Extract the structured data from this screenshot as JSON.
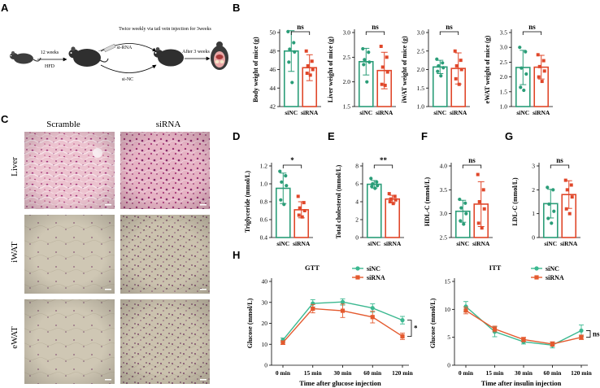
{
  "colors": {
    "green": "#2a9d78",
    "red": "#e0472a",
    "green_line": "#3bb890",
    "red_line": "#e45a2f"
  },
  "panel_a": {
    "label": "A",
    "step1": "12 weeks",
    "diet": "HFD",
    "title": "Twice weekly via tail vein injection for 3weeks",
    "upper": "si-RNA",
    "lower": "si-NC",
    "step2": "After 3 weeks"
  },
  "panel_c": {
    "label": "C",
    "col1": "Scramble",
    "col2": "siRNA",
    "rows": [
      "Liver",
      "iWAT",
      "eWAT"
    ]
  },
  "chart_data": [
    {
      "id": "B1",
      "label": "B",
      "type": "bar",
      "ylabel": "Body weight of mice (g)",
      "ylim": [
        42,
        50
      ],
      "ticks": [
        42,
        44,
        46,
        48,
        50
      ],
      "categories": [
        "siNC",
        "siRNA"
      ],
      "values": [
        48.0,
        46.2
      ],
      "errors": [
        2.2,
        1.4
      ],
      "points": [
        [
          50.1,
          48.9,
          48.2,
          47.9,
          46.8,
          44.6
        ],
        [
          48.0,
          46.9,
          46.4,
          46.0,
          45.6,
          45.4
        ]
      ],
      "sig": "ns"
    },
    {
      "id": "B2",
      "type": "bar",
      "ylabel": "Liver weight of mice (g)",
      "ylim": [
        1.5,
        3.0
      ],
      "ticks": [
        1.5,
        2.0,
        2.5,
        3.0
      ],
      "categories": [
        "siNC",
        "siRNA"
      ],
      "values": [
        2.41,
        2.23
      ],
      "errors": [
        0.27,
        0.37
      ],
      "points": [
        [
          2.67,
          2.6,
          2.45,
          2.4,
          2.35,
          2.0
        ],
        [
          2.72,
          2.5,
          2.3,
          2.2,
          1.95,
          1.93
        ]
      ],
      "sig": "ns"
    },
    {
      "id": "B3",
      "type": "bar",
      "ylabel": "iWAT weight of mice (g)",
      "ylim": [
        1.0,
        3.0
      ],
      "ticks": [
        1.0,
        1.5,
        2.0,
        2.5,
        3.0
      ],
      "categories": [
        "siNC",
        "siRNA"
      ],
      "values": [
        2.07,
        2.03
      ],
      "errors": [
        0.18,
        0.42
      ],
      "points": [
        [
          2.28,
          2.18,
          2.1,
          2.05,
          1.95,
          1.83
        ],
        [
          2.5,
          2.25,
          2.1,
          2.0,
          1.75,
          1.6
        ]
      ],
      "sig": "ns"
    },
    {
      "id": "B4",
      "type": "bar",
      "ylabel": "eWAT weight of mice (g)",
      "ylim": [
        1.0,
        3.5
      ],
      "ticks": [
        1.0,
        1.5,
        2.0,
        2.5,
        3.0,
        3.5
      ],
      "categories": [
        "siNC",
        "siRNA"
      ],
      "values": [
        2.32,
        2.33
      ],
      "errors": [
        0.58,
        0.4
      ],
      "points": [
        [
          3.0,
          2.85,
          2.3,
          2.1,
          1.65,
          1.55
        ],
        [
          2.75,
          2.55,
          2.35,
          2.2,
          2.0,
          1.85
        ]
      ],
      "sig": "ns"
    },
    {
      "id": "D",
      "label": "D",
      "type": "bar",
      "ylabel": "Triglyceride (mmol/L)",
      "ylim": [
        0.4,
        1.2
      ],
      "ticks": [
        0.4,
        0.6,
        0.8,
        1.0,
        1.2
      ],
      "categories": [
        "siNC",
        "siRNA"
      ],
      "values": [
        0.95,
        0.71
      ],
      "errors": [
        0.17,
        0.09
      ],
      "points": [
        [
          1.14,
          1.09,
          1.02,
          0.98,
          0.82,
          0.77
        ],
        [
          0.86,
          0.79,
          0.73,
          0.7,
          0.65,
          0.63
        ]
      ],
      "sig": "*"
    },
    {
      "id": "E",
      "label": "E",
      "type": "bar",
      "ylabel": "Total cholesterol (mmol/L)",
      "ylim": [
        0,
        8
      ],
      "ticks": [
        0,
        2,
        4,
        6,
        8
      ],
      "categories": [
        "siNC",
        "siRNA"
      ],
      "values": [
        5.95,
        4.3
      ],
      "errors": [
        0.42,
        0.42
      ],
      "points": [
        [
          6.6,
          6.2,
          6.0,
          5.8,
          5.7,
          5.5
        ],
        [
          4.9,
          4.6,
          4.3,
          4.2,
          4.0,
          3.8
        ]
      ],
      "sig": "**"
    },
    {
      "id": "F",
      "label": "F",
      "type": "bar",
      "ylabel": "HDL-C (mmol/L)",
      "ylim": [
        2.5,
        4.0
      ],
      "ticks": [
        2.5,
        3.0,
        3.5,
        4.0
      ],
      "categories": [
        "siNC",
        "siRNA"
      ],
      "values": [
        3.05,
        3.2
      ],
      "errors": [
        0.23,
        0.47
      ],
      "points": [
        [
          3.3,
          3.22,
          3.12,
          3.0,
          2.85,
          2.78
        ],
        [
          3.82,
          3.5,
          3.25,
          3.1,
          2.8,
          2.7
        ]
      ],
      "sig": "ns"
    },
    {
      "id": "G",
      "label": "G",
      "type": "bar",
      "ylabel": "LDL-C (mmol/L)",
      "ylim": [
        0,
        3
      ],
      "ticks": [
        0,
        1,
        2,
        3
      ],
      "categories": [
        "siNC",
        "siRNA"
      ],
      "values": [
        1.42,
        1.8
      ],
      "errors": [
        0.6,
        0.58
      ],
      "points": [
        [
          2.1,
          2.0,
          1.4,
          1.1,
          0.8,
          0.6
        ],
        [
          2.4,
          2.2,
          2.0,
          1.7,
          1.2,
          1.0
        ]
      ],
      "sig": "ns"
    },
    {
      "id": "H1",
      "label": "H",
      "type": "line",
      "title": "GTT",
      "xlabel": "Time after glucose injection",
      "ylabel": "Glucose (mmol/L)",
      "ylim": [
        0,
        40
      ],
      "ticks": [
        0,
        10,
        20,
        30,
        40
      ],
      "x": [
        "0 min",
        "15 min",
        "30 min",
        "60 min",
        "120 min"
      ],
      "series": [
        {
          "name": "siNC",
          "values": [
            12.0,
            29.5,
            30.2,
            27.3,
            21.5
          ],
          "errors": [
            1.0,
            1.8,
            1.5,
            2.0,
            1.8
          ]
        },
        {
          "name": "siRNA",
          "values": [
            10.8,
            27.0,
            26.0,
            23.0,
            13.8
          ],
          "errors": [
            0.9,
            2.0,
            3.2,
            2.8,
            1.5
          ]
        }
      ],
      "sig": "*"
    },
    {
      "id": "H2",
      "type": "line",
      "title": "ITT",
      "xlabel": "Time after insulin injection",
      "ylabel": "Glucose (mmol/L)",
      "ylim": [
        0,
        15
      ],
      "ticks": [
        0,
        5,
        10,
        15
      ],
      "x": [
        "0 min",
        "15 min",
        "30 min",
        "60 min",
        "120 min"
      ],
      "series": [
        {
          "name": "siNC",
          "values": [
            10.5,
            6.0,
            4.2,
            3.6,
            6.2
          ],
          "errors": [
            0.9,
            0.9,
            0.4,
            0.5,
            1.0
          ]
        },
        {
          "name": "siRNA",
          "values": [
            9.8,
            6.5,
            4.6,
            3.8,
            5.0
          ],
          "errors": [
            0.6,
            0.5,
            0.4,
            0.4,
            0.4
          ]
        }
      ],
      "sig": "ns"
    }
  ]
}
